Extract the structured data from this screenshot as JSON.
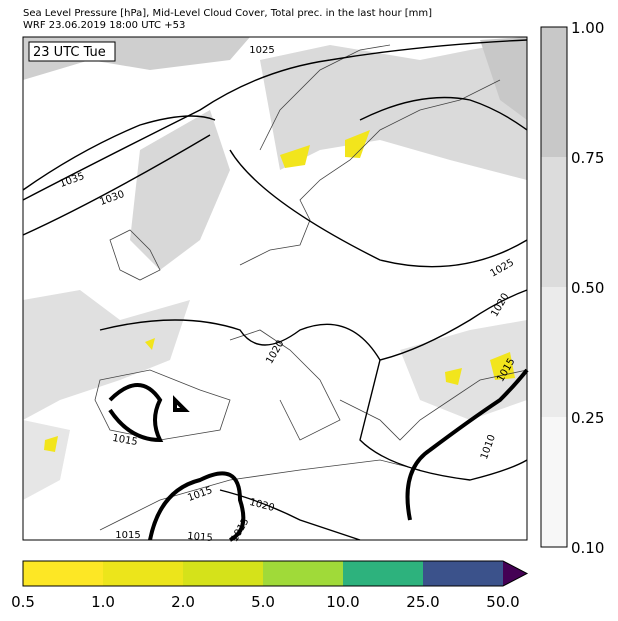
{
  "header": {
    "title": "Sea Level Pressure [hPa], Mid-Level Cloud Cover, Total prec. in the last hour [mm]",
    "subtitle": "WRF 23.06.2019 18:00 UTC +53"
  },
  "map": {
    "time_label": "23 UTC Tue",
    "contour_labels": [
      "1025",
      "1035",
      "1030",
      "1025",
      "1020",
      "1020",
      "1015",
      "1015",
      "1015",
      "1020",
      "1015",
      "1015",
      "1015",
      "1010"
    ]
  },
  "cloud_colorbar": {
    "ticks": [
      "1.00",
      "0.75",
      "0.50",
      "0.25",
      "0.10"
    ],
    "colors": [
      "#c8c8c8",
      "#dcdcdc",
      "#ebebeb",
      "#f7f7f7"
    ]
  },
  "precip_colorbar": {
    "ticks": [
      "0.5",
      "1.0",
      "2.0",
      "5.0",
      "10.0",
      "25.0",
      "50.0"
    ],
    "colors": [
      "#fde725",
      "#ece51b",
      "#d5e21a",
      "#a0da39",
      "#2db27d",
      "#3b528b",
      "#440154"
    ]
  }
}
